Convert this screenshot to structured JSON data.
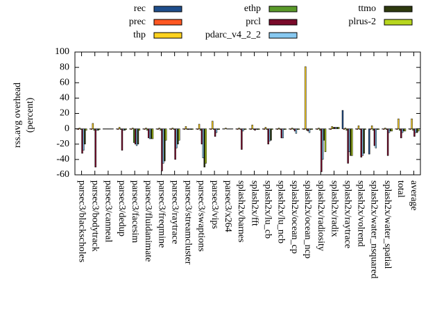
{
  "chart_data": {
    "type": "bar",
    "ylabel": [
      "rss.avg overhead",
      "(percent)"
    ],
    "categories": [
      "parsec3/blackscholes",
      "parsec3/bodytrack",
      "parsec3/canneal",
      "parsec3/dedup",
      "parsec3/facesim",
      "parsec3/fluidanimate",
      "parsec3/freqmine",
      "parsec3/raytrace",
      "parsec3/streamcluster",
      "parsec3/swaptions",
      "parsec3/vips",
      "parsec3/x264",
      "splash2x/barnes",
      "splash2x/fft",
      "splash2x/lu_cb",
      "splash2x/lu_ncb",
      "splash2x/ocean_cp",
      "splash2x/ocean_ncp",
      "splash2x/radiosity",
      "splash2x/radix",
      "splash2x/raytrace",
      "splash2x/volrend",
      "splash2x/water_nsquared",
      "splash2x/water_spatial",
      "total",
      "average"
    ],
    "series": [
      {
        "name": "rec",
        "color": "#1f4e8c",
        "values": [
          0,
          0,
          0,
          0,
          0,
          0,
          0,
          0,
          0,
          0,
          0,
          0,
          0,
          0,
          0,
          0,
          0,
          0,
          0,
          0,
          24,
          0,
          -33,
          0,
          0,
          0
        ]
      },
      {
        "name": "prec",
        "color": "#ff5722",
        "values": [
          -1,
          -1,
          0,
          -1,
          -1,
          -1,
          -1,
          -1,
          -1,
          -1,
          -1,
          0,
          -1,
          -1,
          -1,
          -1,
          -1,
          -1,
          -1,
          -1,
          -1,
          -1,
          -1,
          -1,
          -1,
          -1
        ]
      },
      {
        "name": "thp",
        "color": "#ffd21f",
        "values": [
          1,
          7,
          0,
          2,
          1,
          1,
          1,
          1,
          3,
          6,
          10,
          1,
          1,
          5,
          2,
          1,
          1,
          81,
          1,
          3,
          1,
          4,
          4,
          1,
          13,
          13
        ]
      },
      {
        "name": "ethp",
        "color": "#5a9a2a",
        "values": [
          -1,
          -2,
          0,
          -1,
          -18,
          -2,
          -2,
          -1,
          -1,
          -2,
          -1,
          0,
          -1,
          -1,
          -1,
          -1,
          -1,
          -2,
          -2,
          2,
          -2,
          -1,
          -2,
          -1,
          -2,
          -2
        ]
      },
      {
        "name": "prcl",
        "color": "#7a0a2a",
        "values": [
          -32,
          -50,
          0,
          -28,
          -20,
          -12,
          -55,
          -40,
          -1,
          -20,
          -10,
          0,
          -27,
          -2,
          -20,
          -12,
          -3,
          -3,
          -56,
          2,
          -45,
          -37,
          -22,
          -35,
          -12,
          -10
        ]
      },
      {
        "name": "pdarc_v4_2_2",
        "color": "#87c8f0",
        "values": [
          -28,
          -2,
          0,
          -2,
          -22,
          -13,
          -45,
          -25,
          -1,
          -38,
          -5,
          0,
          -3,
          -1,
          -16,
          -12,
          -6,
          -5,
          -40,
          2,
          -30,
          -35,
          -25,
          -5,
          -5,
          -5
        ]
      },
      {
        "name": "ttmo",
        "color": "#2e3a0e",
        "values": [
          -20,
          -2,
          0,
          -2,
          -20,
          -13,
          -42,
          -20,
          -1,
          -50,
          -1,
          0,
          -1,
          -1,
          -15,
          -1,
          -1,
          -1,
          -15,
          2,
          -35,
          -32,
          -1,
          -3,
          -3,
          -5
        ]
      },
      {
        "name": "plrus-2",
        "color": "#b7d61e",
        "values": [
          -2,
          -1,
          0,
          -1,
          -2,
          -13,
          -15,
          -15,
          -1,
          -45,
          -1,
          0,
          -1,
          -1,
          -1,
          -1,
          -1,
          -1,
          -30,
          2,
          -35,
          -1,
          -1,
          -3,
          -3,
          -3
        ]
      }
    ],
    "ylim": [
      -60,
      100
    ],
    "yticks": [
      -60,
      -40,
      -20,
      0,
      20,
      40,
      60,
      80,
      100
    ],
    "legend": "top"
  }
}
